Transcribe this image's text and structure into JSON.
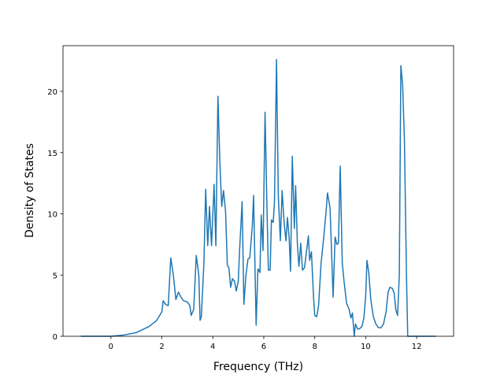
{
  "chart_data": {
    "type": "line",
    "x_label": "Frequency (THz)",
    "y_label": "Density of States",
    "x": [
      -1.18,
      0,
      0.5,
      1,
      1.5,
      1.8,
      2.0,
      2.05,
      2.15,
      2.25,
      2.35,
      2.45,
      2.55,
      2.65,
      2.75,
      2.85,
      3.0,
      3.1,
      3.15,
      3.25,
      3.35,
      3.45,
      3.5,
      3.55,
      3.65,
      3.72,
      3.8,
      3.87,
      3.95,
      4.05,
      4.12,
      4.2,
      4.28,
      4.35,
      4.42,
      4.5,
      4.57,
      4.63,
      4.7,
      4.77,
      4.85,
      4.92,
      5.0,
      5.05,
      5.15,
      5.22,
      5.3,
      5.38,
      5.45,
      5.55,
      5.6,
      5.7,
      5.77,
      5.85,
      5.9,
      5.97,
      6.05,
      6.12,
      6.18,
      6.25,
      6.3,
      6.37,
      6.42,
      6.5,
      6.57,
      6.65,
      6.72,
      6.8,
      6.87,
      6.93,
      7.0,
      7.05,
      7.12,
      7.2,
      7.25,
      7.32,
      7.38,
      7.45,
      7.52,
      7.6,
      7.68,
      7.75,
      7.8,
      7.87,
      7.95,
      8.0,
      8.08,
      8.15,
      8.25,
      8.35,
      8.45,
      8.5,
      8.6,
      8.65,
      8.72,
      8.8,
      8.87,
      8.93,
      9.0,
      9.08,
      9.15,
      9.25,
      9.35,
      9.42,
      9.48,
      9.55,
      9.6,
      9.68,
      9.75,
      9.85,
      9.93,
      10.0,
      10.05,
      10.12,
      10.2,
      10.3,
      10.4,
      10.5,
      10.6,
      10.7,
      10.8,
      10.88,
      10.95,
      11.05,
      11.12,
      11.18,
      11.25,
      11.32,
      11.38,
      11.45,
      11.52,
      11.6,
      11.65,
      12.75
    ],
    "series": [
      {
        "color": "#1f77b4",
        "values": [
          0,
          0,
          0.1,
          0.3,
          0.8,
          1.3,
          2.0,
          2.9,
          2.6,
          2.5,
          6.4,
          5.0,
          3.0,
          3.6,
          3.2,
          2.9,
          2.8,
          2.5,
          1.7,
          2.2,
          6.6,
          5.0,
          1.3,
          1.6,
          6.0,
          12.0,
          7.4,
          10.6,
          7.4,
          12.4,
          7.4,
          19.6,
          14.0,
          10.6,
          11.9,
          10.2,
          5.8,
          5.6,
          4.0,
          4.7,
          4.5,
          3.7,
          4.5,
          7.0,
          11.0,
          2.6,
          5.0,
          6.3,
          6.4,
          9.0,
          11.5,
          0.9,
          5.5,
          5.2,
          9.9,
          7.0,
          18.3,
          11.0,
          5.4,
          5.4,
          9.5,
          9.3,
          11.0,
          22.6,
          11.5,
          7.8,
          11.9,
          9.2,
          7.8,
          9.7,
          7.9,
          5.3,
          14.7,
          8.8,
          12.3,
          7.5,
          5.7,
          7.6,
          5.4,
          5.6,
          7.0,
          8.2,
          6.2,
          6.9,
          3.3,
          1.7,
          1.6,
          2.5,
          6.0,
          8.0,
          10.3,
          11.7,
          10.5,
          7.5,
          3.2,
          8.1,
          7.5,
          7.6,
          13.9,
          6.0,
          4.5,
          2.7,
          2.2,
          1.5,
          1.9,
          0.0,
          1.0,
          0.6,
          0.6,
          0.8,
          1.5,
          3.3,
          6.2,
          5.2,
          3.0,
          1.6,
          1.0,
          0.7,
          0.7,
          1.0,
          2.0,
          3.6,
          4.0,
          3.9,
          3.5,
          2.2,
          1.7,
          5.0,
          22.1,
          20.5,
          16.0,
          5.0,
          0.0,
          0.0
        ]
      }
    ],
    "xlim": [
      -1.88,
      13.45
    ],
    "ylim": [
      0,
      23.73
    ],
    "xticks": [
      0,
      2,
      4,
      6,
      8,
      10,
      12
    ],
    "yticks": [
      0,
      5,
      10,
      15,
      20
    ]
  }
}
